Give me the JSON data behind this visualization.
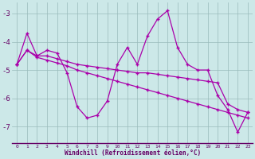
{
  "xlabel": "Windchill (Refroidissement éolien,°C)",
  "x": [
    0,
    1,
    2,
    3,
    4,
    5,
    6,
    7,
    8,
    9,
    10,
    11,
    12,
    13,
    14,
    15,
    16,
    17,
    18,
    19,
    20,
    21,
    22,
    23
  ],
  "line1": [
    -4.8,
    -3.7,
    -4.5,
    -4.3,
    -4.4,
    -5.1,
    -6.3,
    -6.7,
    -6.6,
    -6.1,
    -4.8,
    -4.2,
    -4.8,
    -3.8,
    -3.2,
    -2.9,
    -4.2,
    -4.8,
    -5.0,
    -5.0,
    -5.9,
    -6.4,
    -7.2,
    -6.5
  ],
  "line2": [
    -4.8,
    -4.3,
    -4.5,
    -4.5,
    -4.6,
    -4.7,
    -4.8,
    -4.85,
    -4.9,
    -4.95,
    -5.0,
    -5.05,
    -5.1,
    -5.1,
    -5.15,
    -5.2,
    -5.25,
    -5.3,
    -5.35,
    -5.4,
    -5.45,
    -6.2,
    -6.4,
    -6.5
  ],
  "line3": [
    -4.8,
    -4.3,
    -4.55,
    -4.65,
    -4.75,
    -4.85,
    -5.0,
    -5.1,
    -5.2,
    -5.3,
    -5.4,
    -5.5,
    -5.6,
    -5.7,
    -5.8,
    -5.9,
    -6.0,
    -6.1,
    -6.2,
    -6.3,
    -6.4,
    -6.5,
    -6.6,
    -6.7
  ],
  "line_color": "#aa00aa",
  "bg_color": "#cce8e8",
  "grid_color": "#99bbbb",
  "ylim": [
    -7.6,
    -2.6
  ],
  "yticks": [
    -7,
    -6,
    -5,
    -4,
    -3
  ],
  "text_color": "#660066",
  "xtick_labels": [
    "0",
    "1",
    "2",
    "3",
    "4",
    "5",
    "6",
    "7",
    "8",
    "9",
    "10",
    "11",
    "12",
    "13",
    "14",
    "15",
    "16",
    "17",
    "18",
    "19",
    "20",
    "21",
    "22",
    "23"
  ]
}
